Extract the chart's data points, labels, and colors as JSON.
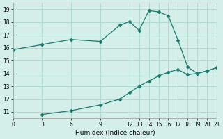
{
  "xlabel": "Humidex (Indice chaleur)",
  "background_color": "#d4eeea",
  "line_color": "#1a7a6e",
  "grid_color": "#a8d8d0",
  "xlim": [
    0,
    21
  ],
  "ylim": [
    10.5,
    19.5
  ],
  "xticks": [
    0,
    3,
    6,
    9,
    12,
    13,
    14,
    15,
    16,
    17,
    18,
    19,
    20,
    21
  ],
  "yticks": [
    11,
    12,
    13,
    14,
    15,
    16,
    17,
    18,
    19
  ],
  "curve1_x": [
    0,
    3,
    6,
    9,
    11,
    12,
    13,
    14,
    15,
    16,
    17,
    18,
    19,
    20,
    21
  ],
  "curve1_y": [
    15.85,
    16.25,
    16.65,
    16.5,
    17.75,
    18.05,
    17.35,
    18.9,
    18.8,
    18.5,
    16.6,
    14.5,
    14.0,
    14.2,
    14.45
  ],
  "curve2_x": [
    3,
    6,
    9,
    11,
    12,
    13,
    14,
    15,
    16,
    17,
    18,
    19,
    20,
    21
  ],
  "curve2_y": [
    10.8,
    11.1,
    11.55,
    12.0,
    12.5,
    13.0,
    13.4,
    13.8,
    14.1,
    14.3,
    13.9,
    14.0,
    14.2,
    14.45
  ]
}
